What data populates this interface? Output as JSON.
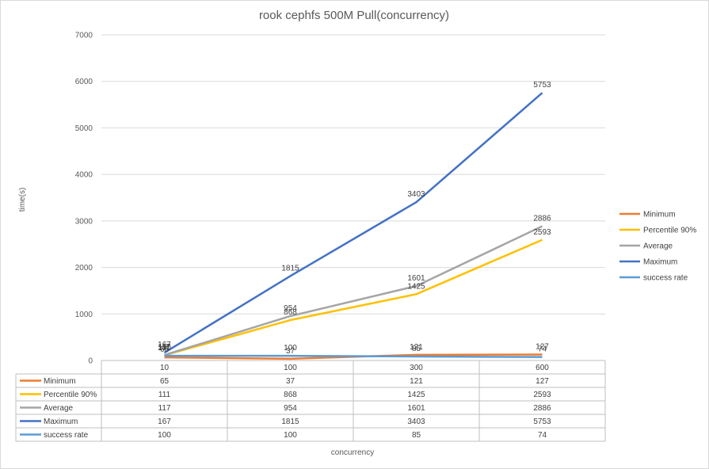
{
  "chart_data": {
    "type": "line",
    "title": "rook cephfs 500M Pull(concurrency)",
    "xlabel": "concurrency",
    "ylabel": "time(s)",
    "categories": [
      "10",
      "100",
      "300",
      "600"
    ],
    "ylim": [
      0,
      7000
    ],
    "yticks": [
      0,
      1000,
      2000,
      3000,
      4000,
      5000,
      6000,
      7000
    ],
    "grid": true,
    "legend": "right",
    "series": [
      {
        "name": "Minimum",
        "values": [
          65,
          37,
          121,
          127
        ],
        "color": "#ED7D31"
      },
      {
        "name": "Percentile 90%",
        "values": [
          111,
          868,
          1425,
          2593
        ],
        "color": "#FFC000"
      },
      {
        "name": "Average",
        "values": [
          117,
          954,
          1601,
          2886
        ],
        "color": "#A5A5A5"
      },
      {
        "name": "Maximum",
        "values": [
          167,
          1815,
          3403,
          5753
        ],
        "color": "#4472C4"
      },
      {
        "name": "success rate",
        "values": [
          100,
          100,
          85,
          74
        ],
        "color": "#5B9BD5"
      }
    ]
  }
}
